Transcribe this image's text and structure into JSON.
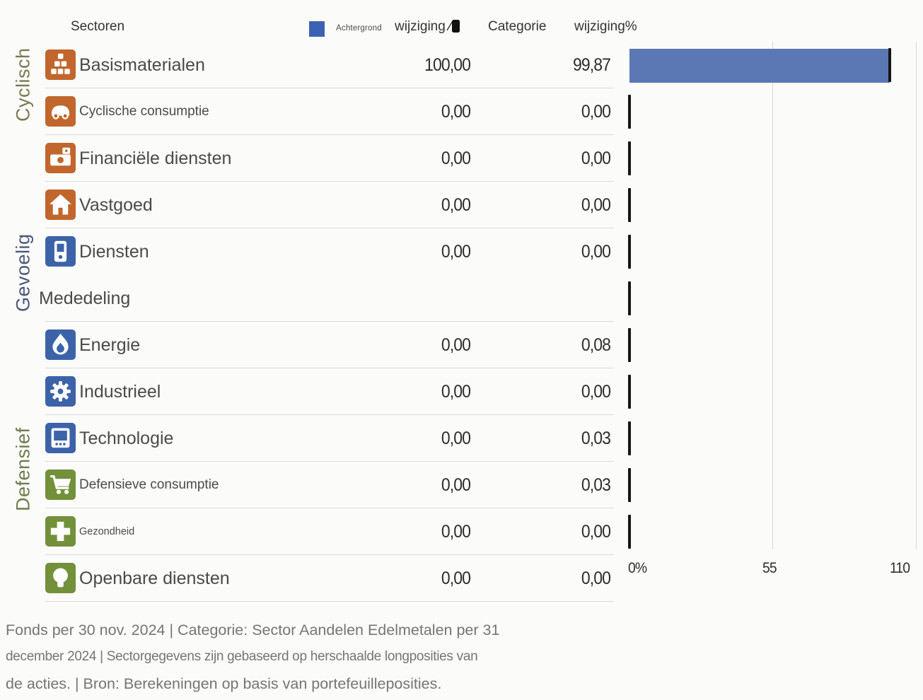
{
  "header": {
    "sectoren_label": "Sectoren",
    "legend_label": "Achtergrond",
    "fund_col_label": "wijziging",
    "fund_col_glyph": "⁄",
    "category_col_label": "Categorie",
    "category_col_label2": "wijziging%"
  },
  "groups": [
    {
      "label": "Cyclisch"
    },
    {
      "label": "Gevoelig"
    },
    {
      "label": "Defensief"
    }
  ],
  "rows": [
    {
      "label": "Basismaterialen",
      "size": "lg",
      "icon": "org-blocks-icon",
      "icon_color": "orange",
      "fund": "100,00",
      "cat": "99,87",
      "bar_pct": 100,
      "tick_value": 99.87,
      "sep_after": true
    },
    {
      "label": "Cyclische consumptie",
      "size": "md",
      "icon": "car-icon",
      "icon_color": "orange",
      "fund": "0,00",
      "cat": "0,00",
      "bar_pct": null,
      "tick_value": 0,
      "sep_after": true
    },
    {
      "label": "Financiële diensten",
      "size": "lg",
      "icon": "money-icon",
      "icon_color": "orange",
      "fund": "0,00",
      "cat": "0,00",
      "bar_pct": null,
      "tick_value": 0,
      "sep_after": true
    },
    {
      "label": "Vastgoed",
      "size": "lg",
      "icon": "house-icon",
      "icon_color": "orange",
      "fund": "0,00",
      "cat": "0,00",
      "bar_pct": null,
      "tick_value": 0,
      "sep_after": true
    },
    {
      "label": "Diensten",
      "size": "lg",
      "icon": "phone-icon",
      "icon_color": "blue",
      "fund": "0,00",
      "cat": "0,00",
      "bar_pct": null,
      "tick_value": 0,
      "sep_after": false
    },
    {
      "label": "Mededeling",
      "size": "lg",
      "icon": null,
      "icon_color": null,
      "fund": "",
      "cat": "",
      "bar_pct": null,
      "tick_value": 0,
      "sep_after": true
    },
    {
      "label": "Energie",
      "size": "lg",
      "icon": "flame-icon",
      "icon_color": "blue",
      "fund": "0,00",
      "cat": "0,08",
      "bar_pct": null,
      "tick_value": 0.08,
      "sep_after": true
    },
    {
      "label": "Industrieel",
      "size": "lg",
      "icon": "gear-icon",
      "icon_color": "blue",
      "fund": "0,00",
      "cat": "0,00",
      "bar_pct": null,
      "tick_value": 0,
      "sep_after": true
    },
    {
      "label": "Technologie",
      "size": "lg",
      "icon": "monitor-icon",
      "icon_color": "blue",
      "fund": "0,00",
      "cat": "0,03",
      "bar_pct": null,
      "tick_value": 0.03,
      "sep_after": true
    },
    {
      "label": "Defensieve consumptie",
      "size": "md",
      "icon": "cart-icon",
      "icon_color": "green",
      "fund": "0,00",
      "cat": "0,03",
      "bar_pct": null,
      "tick_value": 0.03,
      "sep_after": true
    },
    {
      "label": "Gezondheid",
      "size": "sm",
      "icon": "cross-icon",
      "icon_color": "green",
      "fund": "0,00",
      "cat": "0,00",
      "bar_pct": null,
      "tick_value": 0,
      "sep_after": true
    },
    {
      "label": "Openbare diensten",
      "size": "lg",
      "icon": "bulb-icon",
      "icon_color": "green",
      "fund": "0,00",
      "cat": "0,00",
      "bar_pct": null,
      "tick_value": null,
      "sep_after": true
    }
  ],
  "axis": {
    "ticks": [
      "0%",
      "55",
      "110"
    ]
  },
  "footer": {
    "lines": [
      "Fonds per 30 nov. 2024 | Categorie: Sector Aandelen Edelmetalen per 31",
      "december 2024 | Sectorgegevens zijn gebaseerd op herschaalde longposities van",
      "de acties. | Bron: Berekeningen op basis van portefeuilleposities."
    ]
  },
  "colors": {
    "orange": "#C1662C",
    "blue": "#3C63A8",
    "green": "#73903B",
    "bar": "#5B77B4",
    "legend_square": "#3C63B3",
    "group_cyclisch": "#7C7851",
    "group_gevoelig": "#4A597A",
    "group_defensief": "#6C7D4D"
  },
  "chart_data": {
    "type": "bar",
    "orientation": "horizontal",
    "title": "Sectoren",
    "categories": [
      "Basismaterialen",
      "Cyclische consumptie",
      "Financiële diensten",
      "Vastgoed",
      "Diensten",
      "Mededeling",
      "Energie",
      "Industrieel",
      "Technologie",
      "Defensieve consumptie",
      "Gezondheid",
      "Openbare diensten"
    ],
    "series": [
      {
        "name": "wijziging % (fonds)",
        "values": [
          100,
          0,
          0,
          0,
          0,
          null,
          0,
          0,
          0,
          0,
          0,
          0
        ]
      },
      {
        "name": "Categorie wijziging%",
        "values": [
          99.87,
          0,
          0,
          0,
          0,
          null,
          0.08,
          0,
          0.03,
          0.03,
          0,
          0
        ]
      }
    ],
    "group_bands": [
      {
        "label": "Cyclisch",
        "rows": [
          "Basismaterialen",
          "Cyclische consumptie",
          "Financiële diensten",
          "Vastgoed"
        ]
      },
      {
        "label": "Gevoelig",
        "rows": [
          "Diensten",
          "Mededeling",
          "Energie",
          "Industrieel",
          "Technologie"
        ]
      },
      {
        "label": "Defensief",
        "rows": [
          "Defensieve consumptie",
          "Gezondheid",
          "Openbare diensten"
        ]
      }
    ],
    "xlim": [
      0,
      110
    ],
    "x_tick_labels": [
      "0%",
      "55",
      "110"
    ],
    "grid": true,
    "legend": [
      "Achtergrond"
    ],
    "bar_color": "#5B77B4",
    "category_marker": "black vertical tick"
  }
}
